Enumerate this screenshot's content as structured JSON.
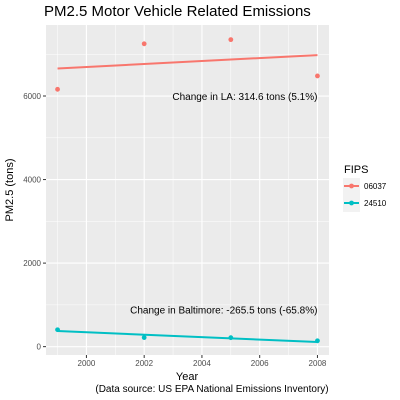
{
  "chart_data": {
    "type": "scatter",
    "title": "PM2.5 Motor Vehicle Related Emissions",
    "xlabel": "Year",
    "ylabel": "PM2.5 (tons)",
    "caption": "(Data source: US EPA National Emissions Inventory)",
    "xlim": [
      1998.6,
      2008.4
    ],
    "ylim": [
      -200,
      7700
    ],
    "x_ticks": [
      2000,
      2002,
      2004,
      2006,
      2008
    ],
    "x_tick_labels": [
      "2000",
      "2002",
      "2004",
      "2006",
      "2008"
    ],
    "y_ticks": [
      0,
      2000,
      4000,
      6000
    ],
    "y_tick_labels": [
      "0",
      "2000",
      "4000",
      "6000"
    ],
    "grid": true,
    "panel_background": "#ebebeb",
    "legend": {
      "title": "FIPS",
      "position": "right"
    },
    "series": [
      {
        "name": "06037",
        "color": "#f8766d",
        "points": [
          {
            "x": 1999,
            "y": 6160
          },
          {
            "x": 2002,
            "y": 7250
          },
          {
            "x": 2005,
            "y": 7350
          },
          {
            "x": 2008,
            "y": 6480
          }
        ],
        "trend": {
          "x": [
            1999,
            2008
          ],
          "y": [
            6660,
            6980
          ]
        }
      },
      {
        "name": "24510",
        "color": "#00bfc4",
        "points": [
          {
            "x": 1999,
            "y": 405
          },
          {
            "x": 2002,
            "y": 218
          },
          {
            "x": 2005,
            "y": 215
          },
          {
            "x": 2008,
            "y": 140
          }
        ],
        "trend": {
          "x": [
            1999,
            2008
          ],
          "y": [
            375,
            110
          ]
        }
      }
    ],
    "annotations": [
      {
        "text": "Change in LA: 314.6 tons (5.1%)",
        "x": 2008,
        "y": 5980
      },
      {
        "text": "Change in Baltimore: -265.5 tons (-65.8%)",
        "x": 2008,
        "y": 870
      }
    ]
  }
}
